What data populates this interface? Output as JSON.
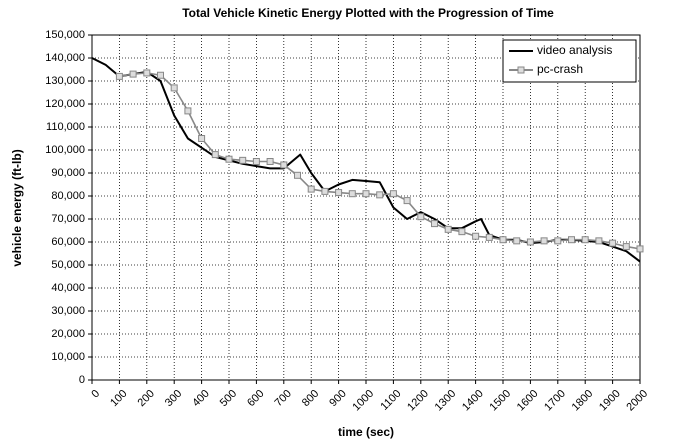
{
  "chart_data": {
    "type": "line",
    "title": "Total Vehicle Kinetic Energy Plotted with the Progression of Time",
    "x_label": "time (sec)",
    "y_label": "vehicle energy (ft-lb)",
    "xlim": [
      0,
      2000
    ],
    "xticks": [
      0,
      100,
      200,
      300,
      400,
      500,
      600,
      700,
      800,
      900,
      1000,
      1100,
      1200,
      1300,
      1400,
      1500,
      1600,
      1700,
      1800,
      1900,
      2000
    ],
    "ylim": [
      0,
      150000
    ],
    "yticks": [
      0,
      {
        "value": 10000,
        "label": "10,000"
      },
      {
        "value": 20000,
        "label": "20,000"
      },
      {
        "value": 30000,
        "label": "30,000"
      },
      {
        "value": 40000,
        "label": "40,000"
      },
      {
        "value": 50000,
        "label": "50,000"
      },
      {
        "value": 60000,
        "label": "60,000"
      },
      {
        "value": 70000,
        "label": "70,000"
      },
      {
        "value": 80000,
        "label": "80,000"
      },
      {
        "value": 90000,
        "label": "90,000"
      },
      {
        "value": 100000,
        "label": "100,000"
      },
      {
        "value": 110000,
        "label": "110,000"
      },
      {
        "value": 120000,
        "label": "120,000"
      },
      {
        "value": 130000,
        "label": "130,000"
      },
      {
        "value": 140000,
        "label": "140,000"
      },
      {
        "value": 150000,
        "label": "150,000"
      }
    ],
    "grid": true,
    "legend": "upper right",
    "series": [
      {
        "name": "video analysis",
        "color": "#000000",
        "marker": "none",
        "x": [
          0,
          50,
          100,
          150,
          200,
          250,
          300,
          350,
          400,
          450,
          500,
          550,
          600,
          650,
          700,
          750,
          760,
          800,
          850,
          900,
          950,
          1000,
          1050,
          1100,
          1150,
          1200,
          1250,
          1300,
          1350,
          1400,
          1420,
          1450,
          1500,
          1550,
          1600,
          1650,
          1700,
          1750,
          1800,
          1850,
          1900,
          1950,
          2000
        ],
        "values": [
          140000,
          137000,
          132000,
          133000,
          134000,
          130000,
          115000,
          105000,
          101000,
          97000,
          95500,
          94000,
          93000,
          92000,
          92000,
          97000,
          98000,
          90000,
          82000,
          85000,
          87000,
          86500,
          86000,
          75000,
          70000,
          73000,
          70000,
          66000,
          66000,
          69000,
          70000,
          63000,
          61000,
          61000,
          59500,
          60000,
          61000,
          61000,
          60500,
          60000,
          58000,
          56000,
          51500
        ]
      },
      {
        "name": "pc-crash",
        "color": "#888888",
        "marker": "square",
        "x": [
          100,
          150,
          200,
          250,
          300,
          350,
          400,
          450,
          500,
          550,
          600,
          650,
          700,
          750,
          800,
          850,
          900,
          950,
          1000,
          1050,
          1100,
          1150,
          1200,
          1250,
          1300,
          1350,
          1400,
          1450,
          1500,
          1550,
          1600,
          1650,
          1700,
          1750,
          1800,
          1850,
          1900,
          1950,
          2000
        ],
        "values": [
          132000,
          133000,
          133500,
          132500,
          127000,
          117000,
          105000,
          98000,
          96000,
          95500,
          95000,
          95000,
          93500,
          89000,
          83000,
          82000,
          81500,
          81000,
          81000,
          80500,
          81000,
          78000,
          71000,
          68000,
          65500,
          64500,
          62500,
          62000,
          61000,
          60500,
          60000,
          60500,
          60500,
          61000,
          61000,
          60500,
          59500,
          58000,
          57000
        ]
      }
    ]
  }
}
